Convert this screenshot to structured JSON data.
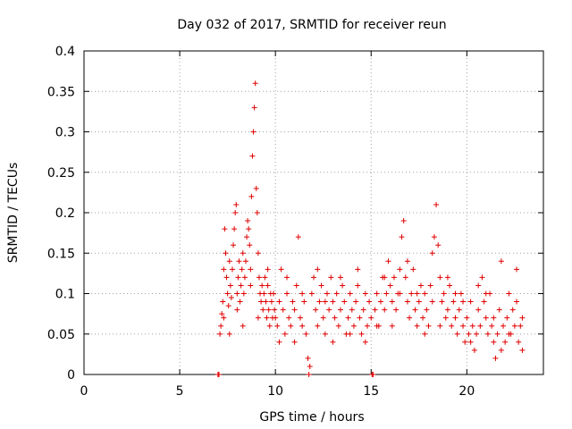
{
  "chart_data": {
    "type": "scatter",
    "title": "Day 032 of 2017, SRMTID for receiver reun",
    "xlabel": "GPS time / hours",
    "ylabel": "SRMTID / TECUs",
    "xlim": [
      0,
      24
    ],
    "ylim": [
      0,
      0.4
    ],
    "xticks": [
      0,
      5,
      10,
      15,
      20
    ],
    "xtick_labels": [
      "0",
      "5",
      "10",
      "15",
      "20"
    ],
    "yticks": [
      0,
      0.05,
      0.1,
      0.15,
      0.2,
      0.25,
      0.3,
      0.35,
      0.4
    ],
    "ytick_labels": [
      "0",
      "0.05",
      "0.1",
      "0.15",
      "0.2",
      "0.25",
      "0.3",
      "0.35",
      "0.4"
    ],
    "grid": true,
    "marker": "plus",
    "color": "#e00000",
    "series": [
      {
        "name": "SRMTID",
        "points": [
          [
            7.0,
            0.0
          ],
          [
            7.05,
            0.0
          ],
          [
            7.1,
            0.05
          ],
          [
            7.15,
            0.06
          ],
          [
            7.2,
            0.075
          ],
          [
            7.25,
            0.09
          ],
          [
            7.3,
            0.13
          ],
          [
            7.35,
            0.18
          ],
          [
            7.4,
            0.15
          ],
          [
            7.45,
            0.12
          ],
          [
            7.5,
            0.1
          ],
          [
            7.55,
            0.085
          ],
          [
            7.6,
            0.14
          ],
          [
            7.65,
            0.11
          ],
          [
            7.7,
            0.095
          ],
          [
            7.75,
            0.13
          ],
          [
            7.8,
            0.16
          ],
          [
            7.85,
            0.18
          ],
          [
            7.9,
            0.2
          ],
          [
            7.95,
            0.21
          ],
          [
            8.0,
            0.1
          ],
          [
            8.05,
            0.12
          ],
          [
            8.1,
            0.14
          ],
          [
            8.15,
            0.09
          ],
          [
            8.2,
            0.11
          ],
          [
            8.25,
            0.13
          ],
          [
            8.3,
            0.15
          ],
          [
            8.35,
            0.1
          ],
          [
            8.4,
            0.12
          ],
          [
            8.45,
            0.14
          ],
          [
            8.5,
            0.17
          ],
          [
            8.55,
            0.19
          ],
          [
            8.6,
            0.18
          ],
          [
            8.65,
            0.16
          ],
          [
            8.7,
            0.13
          ],
          [
            8.75,
            0.22
          ],
          [
            8.8,
            0.27
          ],
          [
            8.85,
            0.3
          ],
          [
            8.9,
            0.33
          ],
          [
            8.95,
            0.36
          ],
          [
            9.0,
            0.23
          ],
          [
            9.05,
            0.2
          ],
          [
            9.1,
            0.15
          ],
          [
            9.15,
            0.12
          ],
          [
            9.2,
            0.1
          ],
          [
            9.25,
            0.09
          ],
          [
            9.3,
            0.11
          ],
          [
            9.35,
            0.08
          ],
          [
            9.4,
            0.1
          ],
          [
            9.45,
            0.12
          ],
          [
            9.5,
            0.09
          ],
          [
            9.55,
            0.07
          ],
          [
            9.6,
            0.11
          ],
          [
            9.65,
            0.08
          ],
          [
            9.7,
            0.06
          ],
          [
            9.75,
            0.1
          ],
          [
            9.8,
            0.09
          ],
          [
            9.85,
            0.07
          ],
          [
            9.9,
            0.1
          ],
          [
            9.95,
            0.08
          ],
          [
            10.0,
            0.07
          ],
          [
            10.1,
            0.06
          ],
          [
            10.2,
            0.09
          ],
          [
            10.3,
            0.13
          ],
          [
            10.4,
            0.08
          ],
          [
            10.5,
            0.05
          ],
          [
            10.6,
            0.1
          ],
          [
            10.7,
            0.07
          ],
          [
            10.8,
            0.06
          ],
          [
            10.9,
            0.09
          ],
          [
            11.0,
            0.08
          ],
          [
            11.1,
            0.11
          ],
          [
            11.2,
            0.17
          ],
          [
            11.3,
            0.07
          ],
          [
            11.4,
            0.06
          ],
          [
            11.5,
            0.09
          ],
          [
            11.6,
            0.05
          ],
          [
            11.7,
            0.02
          ],
          [
            11.75,
            0.0
          ],
          [
            11.8,
            0.01
          ],
          [
            11.9,
            0.1
          ],
          [
            12.0,
            0.12
          ],
          [
            12.1,
            0.08
          ],
          [
            12.2,
            0.06
          ],
          [
            12.3,
            0.09
          ],
          [
            12.4,
            0.11
          ],
          [
            12.5,
            0.07
          ],
          [
            12.6,
            0.05
          ],
          [
            12.7,
            0.1
          ],
          [
            12.8,
            0.08
          ],
          [
            12.9,
            0.12
          ],
          [
            13.0,
            0.09
          ],
          [
            13.1,
            0.07
          ],
          [
            13.2,
            0.1
          ],
          [
            13.3,
            0.06
          ],
          [
            13.4,
            0.08
          ],
          [
            13.5,
            0.11
          ],
          [
            13.6,
            0.09
          ],
          [
            13.7,
            0.05
          ],
          [
            13.8,
            0.07
          ],
          [
            13.9,
            0.1
          ],
          [
            14.0,
            0.08
          ],
          [
            14.1,
            0.06
          ],
          [
            14.2,
            0.09
          ],
          [
            14.3,
            0.11
          ],
          [
            14.4,
            0.07
          ],
          [
            14.5,
            0.05
          ],
          [
            14.6,
            0.08
          ],
          [
            14.7,
            0.1
          ],
          [
            14.8,
            0.06
          ],
          [
            14.9,
            0.09
          ],
          [
            15.0,
            0.07
          ],
          [
            15.05,
            0.0
          ],
          [
            15.1,
            0.0
          ],
          [
            15.2,
            0.08
          ],
          [
            15.3,
            0.1
          ],
          [
            15.4,
            0.06
          ],
          [
            15.5,
            0.09
          ],
          [
            15.6,
            0.12
          ],
          [
            15.7,
            0.08
          ],
          [
            15.8,
            0.1
          ],
          [
            15.9,
            0.14
          ],
          [
            16.0,
            0.11
          ],
          [
            16.1,
            0.09
          ],
          [
            16.2,
            0.12
          ],
          [
            16.3,
            0.08
          ],
          [
            16.4,
            0.1
          ],
          [
            16.5,
            0.13
          ],
          [
            16.6,
            0.17
          ],
          [
            16.7,
            0.19
          ],
          [
            16.8,
            0.12
          ],
          [
            16.9,
            0.09
          ],
          [
            17.0,
            0.07
          ],
          [
            17.1,
            0.1
          ],
          [
            17.2,
            0.13
          ],
          [
            17.3,
            0.08
          ],
          [
            17.4,
            0.06
          ],
          [
            17.5,
            0.09
          ],
          [
            17.6,
            0.11
          ],
          [
            17.7,
            0.07
          ],
          [
            17.8,
            0.1
          ],
          [
            17.9,
            0.08
          ],
          [
            18.0,
            0.06
          ],
          [
            18.1,
            0.11
          ],
          [
            18.2,
            0.15
          ],
          [
            18.3,
            0.17
          ],
          [
            18.4,
            0.21
          ],
          [
            18.5,
            0.16
          ],
          [
            18.6,
            0.12
          ],
          [
            18.7,
            0.09
          ],
          [
            18.8,
            0.1
          ],
          [
            18.9,
            0.07
          ],
          [
            19.0,
            0.08
          ],
          [
            19.1,
            0.11
          ],
          [
            19.2,
            0.06
          ],
          [
            19.3,
            0.09
          ],
          [
            19.4,
            0.07
          ],
          [
            19.5,
            0.05
          ],
          [
            19.6,
            0.08
          ],
          [
            19.7,
            0.1
          ],
          [
            19.8,
            0.06
          ],
          [
            19.9,
            0.04
          ],
          [
            20.0,
            0.07
          ],
          [
            20.1,
            0.05
          ],
          [
            20.2,
            0.09
          ],
          [
            20.3,
            0.06
          ],
          [
            20.4,
            0.03
          ],
          [
            20.5,
            0.05
          ],
          [
            20.6,
            0.08
          ],
          [
            20.7,
            0.06
          ],
          [
            20.8,
            0.12
          ],
          [
            20.9,
            0.09
          ],
          [
            21.0,
            0.07
          ],
          [
            21.1,
            0.05
          ],
          [
            21.2,
            0.1
          ],
          [
            21.3,
            0.06
          ],
          [
            21.4,
            0.04
          ],
          [
            21.5,
            0.02
          ],
          [
            21.6,
            0.05
          ],
          [
            21.7,
            0.08
          ],
          [
            21.8,
            0.14
          ],
          [
            21.9,
            0.06
          ],
          [
            22.0,
            0.04
          ],
          [
            22.1,
            0.07
          ],
          [
            22.2,
            0.1
          ],
          [
            22.3,
            0.05
          ],
          [
            22.4,
            0.08
          ],
          [
            22.5,
            0.06
          ],
          [
            22.6,
            0.13
          ],
          [
            22.7,
            0.04
          ],
          [
            22.8,
            0.06
          ],
          [
            22.9,
            0.03
          ],
          [
            7.3,
            0.07
          ],
          [
            7.6,
            0.05
          ],
          [
            8.0,
            0.08
          ],
          [
            8.3,
            0.06
          ],
          [
            8.7,
            0.11
          ],
          [
            9.1,
            0.07
          ],
          [
            9.6,
            0.13
          ],
          [
            10.2,
            0.04
          ],
          [
            10.6,
            0.12
          ],
          [
            11.0,
            0.04
          ],
          [
            11.4,
            0.1
          ],
          [
            12.2,
            0.13
          ],
          [
            12.6,
            0.09
          ],
          [
            13.0,
            0.04
          ],
          [
            13.4,
            0.12
          ],
          [
            13.9,
            0.05
          ],
          [
            14.3,
            0.13
          ],
          [
            14.7,
            0.04
          ],
          [
            15.3,
            0.06
          ],
          [
            15.7,
            0.12
          ],
          [
            16.1,
            0.06
          ],
          [
            16.5,
            0.1
          ],
          [
            16.9,
            0.14
          ],
          [
            17.4,
            0.1
          ],
          [
            17.8,
            0.05
          ],
          [
            18.2,
            0.09
          ],
          [
            18.6,
            0.06
          ],
          [
            19.0,
            0.12
          ],
          [
            19.4,
            0.1
          ],
          [
            19.8,
            0.09
          ],
          [
            20.2,
            0.04
          ],
          [
            20.6,
            0.11
          ],
          [
            21.0,
            0.1
          ],
          [
            21.4,
            0.07
          ],
          [
            21.8,
            0.03
          ],
          [
            22.2,
            0.05
          ],
          [
            22.6,
            0.09
          ],
          [
            22.9,
            0.07
          ]
        ]
      }
    ]
  }
}
